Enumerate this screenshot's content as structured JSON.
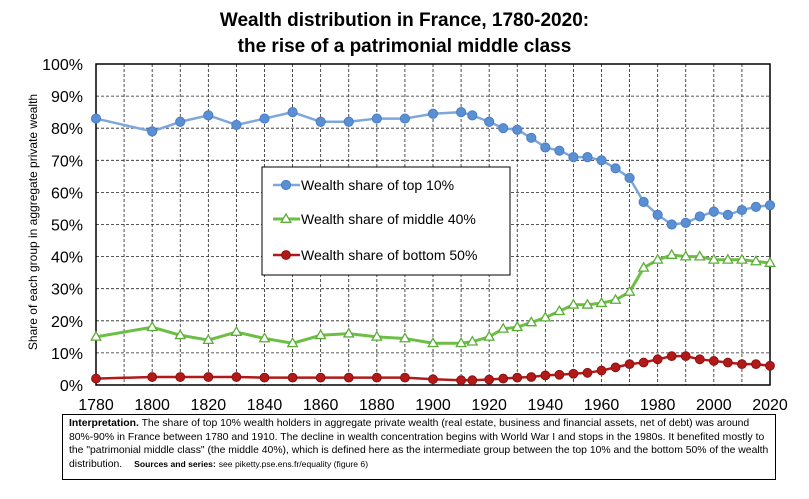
{
  "chart_data": {
    "type": "line",
    "title": "Wealth distribution in France, 1780-2020:",
    "subtitle": "the rise of a patrimonial middle class",
    "xlabel": "",
    "ylabel": "Share of each group in aggregate private wealth",
    "xlim": [
      1780,
      2020
    ],
    "ylim": [
      0,
      100
    ],
    "x_ticks": [
      1780,
      1800,
      1820,
      1840,
      1860,
      1880,
      1900,
      1920,
      1940,
      1960,
      1980,
      2000,
      2020
    ],
    "y_ticks": [
      0,
      10,
      20,
      30,
      40,
      50,
      60,
      70,
      80,
      90,
      100
    ],
    "y_tick_labels": [
      "0%",
      "10%",
      "20%",
      "30%",
      "40%",
      "50%",
      "60%",
      "70%",
      "80%",
      "90%",
      "100%"
    ],
    "grid": true,
    "legend_position": "center-left",
    "x": [
      1780,
      1800,
      1810,
      1820,
      1830,
      1840,
      1850,
      1860,
      1870,
      1880,
      1890,
      1900,
      1910,
      1914,
      1920,
      1925,
      1930,
      1935,
      1940,
      1945,
      1950,
      1955,
      1960,
      1965,
      1970,
      1975,
      1980,
      1985,
      1990,
      1995,
      2000,
      2005,
      2010,
      2015,
      2020
    ],
    "series": [
      {
        "name": "Wealth share of top 10%",
        "color": "#7DA7DC",
        "marker": "circle",
        "marker_fill": "#5B8FD4",
        "marker_stroke": "#4A7FC6",
        "values": [
          83,
          79,
          82,
          84,
          81,
          83,
          85,
          82,
          82,
          83,
          83,
          84.5,
          85,
          84,
          82,
          80,
          79.5,
          77,
          74,
          73,
          71,
          71,
          70,
          67.5,
          64.5,
          57,
          53,
          50,
          50.5,
          52.5,
          54,
          53,
          54.5,
          55.5,
          56
        ]
      },
      {
        "name": "Wealth share of middle 40%",
        "color": "#6DBE45",
        "marker": "triangle",
        "marker_fill": "#FFFFFF",
        "marker_stroke": "#5AAE35",
        "values": [
          15,
          18,
          15.5,
          14,
          16.5,
          14.5,
          13,
          15.5,
          16,
          15,
          14.5,
          13,
          13,
          13.5,
          15,
          17.5,
          18,
          19.5,
          21,
          23,
          25,
          25,
          25.5,
          26.5,
          29,
          36.5,
          39,
          40.5,
          40,
          40,
          39,
          39,
          39,
          38.5,
          38
        ]
      },
      {
        "name": "Wealth share of bottom 50%",
        "color": "#B21A1A",
        "marker": "circle",
        "marker_fill": "#B21A1A",
        "marker_stroke": "#8E1010",
        "values": [
          2,
          2.5,
          2.5,
          2.5,
          2.5,
          2.3,
          2.3,
          2.3,
          2.3,
          2.3,
          2.3,
          1.8,
          1.5,
          1.5,
          1.7,
          2,
          2.3,
          2.5,
          3,
          3.2,
          3.5,
          3.8,
          4.5,
          5.5,
          6.5,
          7,
          8,
          9,
          9,
          8,
          7.5,
          7,
          6.5,
          6.5,
          6
        ]
      }
    ]
  },
  "note": {
    "label": "Interpretation.",
    "text": "The share of top 10% wealth holders in aggregate private wealth (real estate, business and financial assets, net of debt) was around 80%-90% in France between 1780 and 1910. The decline in wealth concentration begins with World War I and stops in the 1980s. It benefited mostly to the \"patrimonial middle class\" (the middle 40%), which is defined here as the intermediate group between the top 10% and the bottom 50% of the wealth distribution.",
    "sources_label": "Sources and series:",
    "sources_text": "see piketty.pse.ens.fr/equality (figure 6)"
  }
}
